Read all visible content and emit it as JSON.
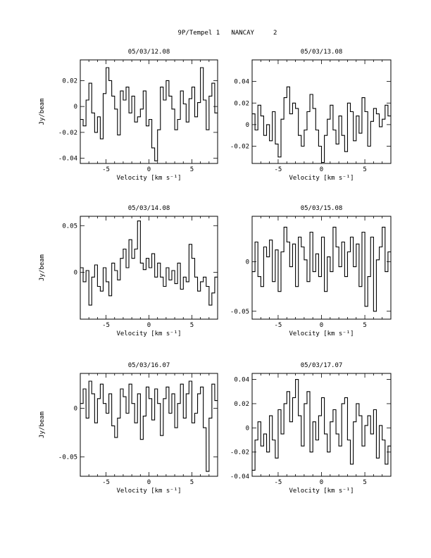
{
  "page_title": "9P/Tempel 1   NANCAY     2",
  "chart_data": [
    {
      "type": "line",
      "step": true,
      "title": "05/03/12.08",
      "xlabel": "Velocity [km s⁻¹]",
      "ylabel": "Jy/beam",
      "xlim": [
        -8,
        8
      ],
      "ylim": [
        -0.044,
        0.036
      ],
      "xticks": [
        -5,
        0,
        5
      ],
      "yticks": [
        -0.04,
        -0.02,
        0,
        0.02
      ],
      "ytick_labels": [
        "-0.04",
        "-0.02",
        "0",
        "0.02"
      ],
      "x": [
        -8,
        -7.67,
        -7.33,
        -7,
        -6.67,
        -6.33,
        -6,
        -5.67,
        -5.33,
        -5,
        -4.67,
        -4.33,
        -4,
        -3.67,
        -3.33,
        -3,
        -2.67,
        -2.33,
        -2,
        -1.67,
        -1.33,
        -1,
        -0.67,
        -0.33,
        0,
        0.33,
        0.67,
        1,
        1.33,
        1.67,
        2,
        2.33,
        2.67,
        3,
        3.33,
        3.67,
        4,
        4.33,
        4.67,
        5,
        5.33,
        5.67,
        6,
        6.33,
        6.67,
        7,
        7.33,
        7.67
      ],
      "y": [
        -0.01,
        -0.015,
        0.005,
        0.018,
        -0.005,
        -0.02,
        -0.008,
        -0.025,
        0.01,
        0.03,
        0.02,
        0.008,
        -0.002,
        -0.022,
        0.012,
        0.005,
        0.015,
        -0.005,
        0.008,
        -0.012,
        -0.008,
        -0.002,
        0.012,
        -0.015,
        -0.01,
        -0.032,
        -0.042,
        -0.018,
        0.015,
        0.005,
        0.02,
        0.008,
        -0.002,
        -0.018,
        -0.01,
        0.012,
        0.002,
        -0.012,
        0.006,
        0.015,
        -0.008,
        0.003,
        0.03,
        0.005,
        -0.018,
        0.008,
        0.018,
        -0.005
      ]
    },
    {
      "type": "line",
      "step": true,
      "title": "05/03/13.08",
      "xlabel": "Velocity [km s⁻¹]",
      "ylabel": "",
      "xlim": [
        -8,
        8
      ],
      "ylim": [
        -0.036,
        0.06
      ],
      "xticks": [
        -5,
        0,
        5
      ],
      "yticks": [
        -0.02,
        0,
        0.02,
        0.04
      ],
      "ytick_labels": [
        "-0.02",
        "0",
        "0.02",
        "0.04"
      ],
      "x": [
        -8,
        -7.67,
        -7.33,
        -7,
        -6.67,
        -6.33,
        -6,
        -5.67,
        -5.33,
        -5,
        -4.67,
        -4.33,
        -4,
        -3.67,
        -3.33,
        -3,
        -2.67,
        -2.33,
        -2,
        -1.67,
        -1.33,
        -1,
        -0.67,
        -0.33,
        0,
        0.33,
        0.67,
        1,
        1.33,
        1.67,
        2,
        2.33,
        2.67,
        3,
        3.33,
        3.67,
        4,
        4.33,
        4.67,
        5,
        5.33,
        5.67,
        6,
        6.33,
        6.67,
        7,
        7.33,
        7.67
      ],
      "y": [
        0.01,
        -0.005,
        0.018,
        0.008,
        -0.01,
        0,
        -0.015,
        0.012,
        -0.018,
        -0.03,
        0.005,
        0.025,
        0.035,
        0.01,
        0.02,
        0.015,
        -0.01,
        -0.02,
        -0.005,
        0.012,
        0.028,
        0.015,
        -0.005,
        -0.02,
        -0.035,
        -0.01,
        0.005,
        0.018,
        -0.005,
        -0.018,
        0.008,
        -0.01,
        -0.025,
        0.02,
        0.012,
        -0.015,
        0.008,
        -0.008,
        0.025,
        0.012,
        -0.02,
        0.003,
        0.015,
        0.01,
        -0.002,
        0.005,
        0.018,
        0.008
      ]
    },
    {
      "type": "line",
      "step": true,
      "title": "05/03/14.08",
      "xlabel": "Velocity [km s⁻¹]",
      "ylabel": "Jy/beam",
      "xlim": [
        -8,
        8
      ],
      "ylim": [
        -0.05,
        0.06
      ],
      "xticks": [
        -5,
        0,
        5
      ],
      "yticks": [
        0,
        0.05
      ],
      "ytick_labels": [
        "0",
        "0.05"
      ],
      "x": [
        -8,
        -7.67,
        -7.33,
        -7,
        -6.67,
        -6.33,
        -6,
        -5.67,
        -5.33,
        -5,
        -4.67,
        -4.33,
        -4,
        -3.67,
        -3.33,
        -3,
        -2.67,
        -2.33,
        -2,
        -1.67,
        -1.33,
        -1,
        -0.67,
        -0.33,
        0,
        0.33,
        0.67,
        1,
        1.33,
        1.67,
        2,
        2.33,
        2.67,
        3,
        3.33,
        3.67,
        4,
        4.33,
        4.67,
        5,
        5.33,
        5.67,
        6,
        6.33,
        6.67,
        7,
        7.33,
        7.67
      ],
      "y": [
        0.005,
        -0.01,
        0.002,
        -0.035,
        -0.005,
        0.008,
        -0.015,
        -0.02,
        0.005,
        -0.01,
        -0.025,
        0.01,
        0.002,
        -0.008,
        0.015,
        0.025,
        0.005,
        0.035,
        0.015,
        0.025,
        0.055,
        0.01,
        0.003,
        0.015,
        0.005,
        0.02,
        -0.005,
        0.01,
        -0.005,
        -0.015,
        0.005,
        -0.008,
        0.002,
        -0.012,
        0.01,
        -0.018,
        -0.005,
        -0.01,
        0.03,
        0.015,
        -0.005,
        -0.02,
        -0.01,
        -0.005,
        -0.015,
        -0.035,
        -0.022,
        -0.005
      ]
    },
    {
      "type": "line",
      "step": true,
      "title": "05/03/15.08",
      "xlabel": "Velocity [km s⁻¹]",
      "ylabel": "",
      "xlim": [
        -8,
        8
      ],
      "ylim": [
        -0.058,
        0.046
      ],
      "xticks": [
        -5,
        0,
        5
      ],
      "yticks": [
        -0.05,
        0
      ],
      "ytick_labels": [
        "-0.05",
        "0"
      ],
      "x": [
        -8,
        -7.67,
        -7.33,
        -7,
        -6.67,
        -6.33,
        -6,
        -5.67,
        -5.33,
        -5,
        -4.67,
        -4.33,
        -4,
        -3.67,
        -3.33,
        -3,
        -2.67,
        -2.33,
        -2,
        -1.67,
        -1.33,
        -1,
        -0.67,
        -0.33,
        0,
        0.33,
        0.67,
        1,
        1.33,
        1.67,
        2,
        2.33,
        2.67,
        3,
        3.33,
        3.67,
        4,
        4.33,
        4.67,
        5,
        5.33,
        5.67,
        6,
        6.33,
        6.67,
        7,
        7.33,
        7.67
      ],
      "y": [
        -0.01,
        0.02,
        -0.015,
        -0.025,
        0.015,
        0.005,
        0.022,
        -0.02,
        0.012,
        -0.03,
        0.01,
        0.035,
        0.02,
        -0.005,
        0.018,
        -0.025,
        0.025,
        0.015,
        0.002,
        -0.02,
        0.03,
        -0.01,
        0.008,
        -0.015,
        0.025,
        -0.03,
        0.005,
        -0.01,
        0.035,
        0.015,
        -0.005,
        0.02,
        -0.015,
        0.01,
        0.025,
        -0.005,
        0.018,
        -0.025,
        0.03,
        -0.045,
        -0.015,
        0.025,
        -0.05,
        0.002,
        0.015,
        0.035,
        -0.01,
        0.01
      ]
    },
    {
      "type": "line",
      "step": true,
      "title": "05/03/16.07",
      "xlabel": "Velocity [km s⁻¹]",
      "ylabel": "Jy/beam",
      "xlim": [
        -8,
        8
      ],
      "ylim": [
        -0.07,
        0.036
      ],
      "xticks": [
        -5,
        0,
        5
      ],
      "yticks": [
        -0.05,
        0
      ],
      "ytick_labels": [
        "-0.05",
        "0"
      ],
      "x": [
        -8,
        -7.67,
        -7.33,
        -7,
        -6.67,
        -6.33,
        -6,
        -5.67,
        -5.33,
        -5,
        -4.67,
        -4.33,
        -4,
        -3.67,
        -3.33,
        -3,
        -2.67,
        -2.33,
        -2,
        -1.67,
        -1.33,
        -1,
        -0.67,
        -0.33,
        0,
        0.33,
        0.67,
        1,
        1.33,
        1.67,
        2,
        2.33,
        2.67,
        3,
        3.33,
        3.67,
        4,
        4.33,
        4.67,
        5,
        5.33,
        5.67,
        6,
        6.33,
        6.67,
        7,
        7.33,
        7.67
      ],
      "y": [
        0.005,
        0.02,
        -0.01,
        0.028,
        0.015,
        -0.015,
        0.01,
        0.025,
        0.005,
        -0.005,
        0.015,
        -0.018,
        -0.03,
        -0.01,
        0.02,
        0.012,
        -0.005,
        0.025,
        0.005,
        -0.015,
        0.015,
        -0.032,
        -0.008,
        0.022,
        0.01,
        -0.012,
        0.02,
        0.005,
        -0.028,
        0.01,
        0.022,
        -0.005,
        0.015,
        -0.02,
        0.005,
        0.025,
        -0.01,
        0.015,
        0.028,
        -0.015,
        -0.005,
        0.015,
        0.022,
        -0.02,
        -0.065,
        -0.01,
        0.025,
        0.008
      ]
    },
    {
      "type": "line",
      "step": true,
      "title": "05/03/17.07",
      "xlabel": "Velocity [km s⁻¹]",
      "ylabel": "",
      "xlim": [
        -8,
        8
      ],
      "ylim": [
        -0.04,
        0.045
      ],
      "xticks": [
        -5,
        0,
        5
      ],
      "yticks": [
        -0.04,
        -0.02,
        0,
        0.02,
        0.04
      ],
      "ytick_labels": [
        "-0.04",
        "-0.02",
        "0",
        "0.02",
        "0.04"
      ],
      "x": [
        -8,
        -7.67,
        -7.33,
        -7,
        -6.67,
        -6.33,
        -6,
        -5.67,
        -5.33,
        -5,
        -4.67,
        -4.33,
        -4,
        -3.67,
        -3.33,
        -3,
        -2.67,
        -2.33,
        -2,
        -1.67,
        -1.33,
        -1,
        -0.67,
        -0.33,
        0,
        0.33,
        0.67,
        1,
        1.33,
        1.67,
        2,
        2.33,
        2.67,
        3,
        3.33,
        3.67,
        4,
        4.33,
        4.67,
        5,
        5.33,
        5.67,
        6,
        6.33,
        6.67,
        7,
        7.33,
        7.67
      ],
      "y": [
        -0.035,
        -0.01,
        0.005,
        -0.015,
        -0.005,
        -0.02,
        0.01,
        -0.01,
        -0.025,
        0.015,
        -0.005,
        0.02,
        0.03,
        0.005,
        0.025,
        0.04,
        0.01,
        -0.015,
        0.02,
        0.03,
        -0.02,
        0.005,
        -0.01,
        0.01,
        0.025,
        -0.005,
        -0.02,
        0.005,
        0.015,
        -0.005,
        -0.015,
        0.02,
        0.025,
        -0.01,
        -0.03,
        0.005,
        0.02,
        0.01,
        -0.015,
        0.002,
        0.01,
        -0.005,
        0.015,
        -0.025,
        0.002,
        -0.01,
        -0.03,
        -0.015
      ]
    }
  ]
}
